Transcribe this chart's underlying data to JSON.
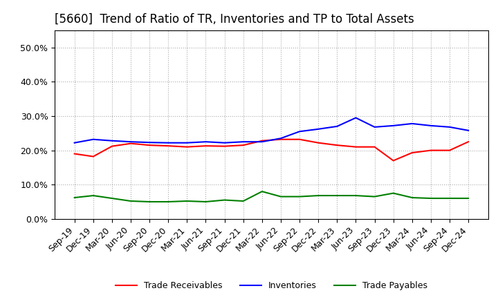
{
  "title": "[5660]  Trend of Ratio of TR, Inventories and TP to Total Assets",
  "x_labels": [
    "Sep-19",
    "Dec-19",
    "Mar-20",
    "Jun-20",
    "Sep-20",
    "Dec-20",
    "Mar-21",
    "Jun-21",
    "Sep-21",
    "Dec-21",
    "Mar-22",
    "Jun-22",
    "Sep-22",
    "Dec-22",
    "Mar-23",
    "Jun-23",
    "Sep-23",
    "Dec-23",
    "Mar-24",
    "Jun-24",
    "Sep-24",
    "Dec-24"
  ],
  "trade_receivables": [
    0.19,
    0.182,
    0.212,
    0.22,
    0.215,
    0.213,
    0.21,
    0.213,
    0.212,
    0.215,
    0.228,
    0.232,
    0.232,
    0.222,
    0.215,
    0.21,
    0.21,
    0.17,
    0.193,
    0.2,
    0.2,
    0.225
  ],
  "inventories": [
    0.222,
    0.232,
    0.228,
    0.225,
    0.223,
    0.222,
    0.222,
    0.225,
    0.222,
    0.225,
    0.225,
    0.235,
    0.255,
    0.262,
    0.27,
    0.295,
    0.268,
    0.272,
    0.278,
    0.272,
    0.268,
    0.258
  ],
  "trade_payables": [
    0.062,
    0.068,
    0.06,
    0.052,
    0.05,
    0.05,
    0.052,
    0.05,
    0.055,
    0.052,
    0.08,
    0.065,
    0.065,
    0.068,
    0.068,
    0.068,
    0.065,
    0.075,
    0.062,
    0.06,
    0.06,
    0.06
  ],
  "ylim": [
    0.0,
    0.55
  ],
  "yticks": [
    0.0,
    0.1,
    0.2,
    0.3,
    0.4,
    0.5
  ],
  "line_colors": [
    "#ff0000",
    "#0000ff",
    "#008000"
  ],
  "legend_labels": [
    "Trade Receivables",
    "Inventories",
    "Trade Payables"
  ],
  "background_color": "#ffffff",
  "grid_color": "#aaaaaa",
  "title_fontsize": 12,
  "tick_fontsize": 9
}
